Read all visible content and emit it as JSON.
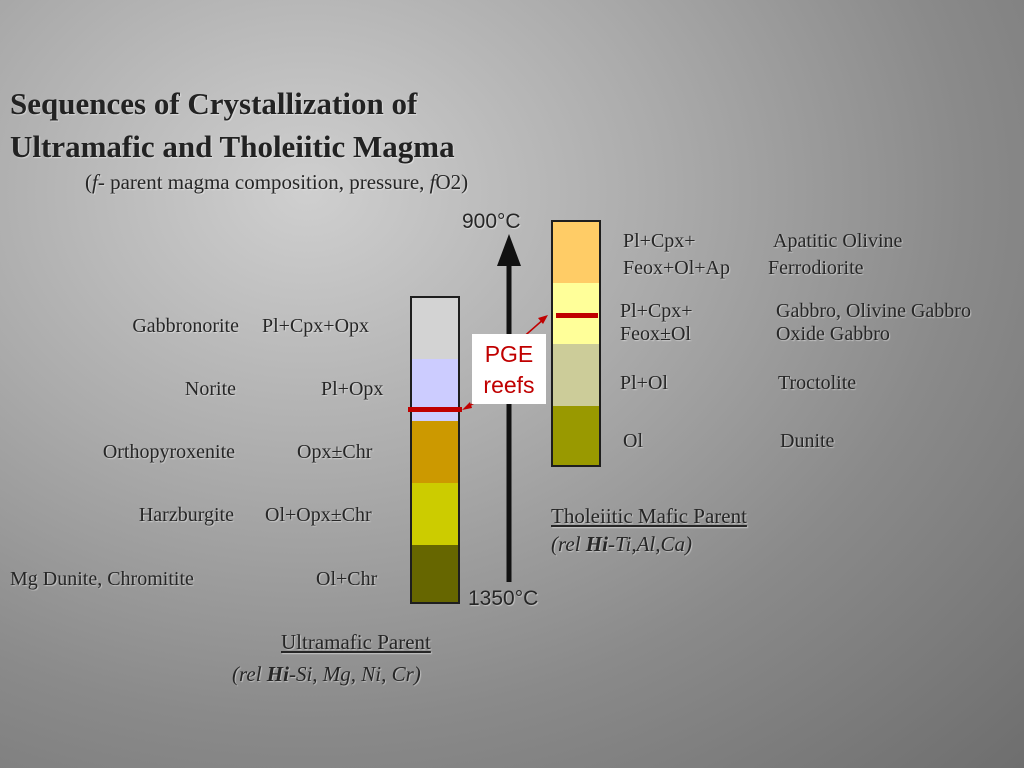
{
  "title_line1": "Sequences of Crystallization of",
  "title_line2": "Ultramafic and Tholeiitic Magma",
  "subtitle": {
    "open": "(",
    "f1": "f",
    "mid": "- parent magma composition, pressure, ",
    "f2": "f",
    "end": "O2)"
  },
  "temperature": {
    "top": "900°C",
    "bottom": "1350°C"
  },
  "pge_label": {
    "line1": "PGE",
    "line2": "reefs"
  },
  "ultramafic": {
    "rows": [
      {
        "rock": "Gabbronorite",
        "minerals": "Pl+Cpx+Opx",
        "color": "#d3d3d3"
      },
      {
        "rock": "Norite",
        "minerals": "Pl+Opx",
        "color": "#ccccff"
      },
      {
        "rock": "Orthopyroxenite",
        "minerals": "Opx±Chr",
        "color": "#cc9900"
      },
      {
        "rock": "Harzburgite",
        "minerals": "Ol+Opx±Chr",
        "color": "#cccc00"
      },
      {
        "rock": "Mg Dunite, Chromitite",
        "minerals": "Ol+Chr",
        "color": "#666600"
      }
    ],
    "caption": "Ultramafic Parent",
    "caption_sub": {
      "open": "(rel ",
      "hi": "Hi",
      "rest": "-Si, Mg, Ni, Cr)"
    }
  },
  "tholeiitic": {
    "rows": [
      {
        "minerals_line1": "Pl+Cpx+",
        "minerals_line2": "Feox+Ol+Ap",
        "rock_line1": "Apatitic Olivine",
        "rock_line2": "Ferrodiorite",
        "color": "#ffcc66"
      },
      {
        "minerals_line1": "Pl+Cpx+",
        "minerals_line2": "Feox±Ol",
        "rock_line1": "Gabbro, Olivine Gabbro",
        "rock_line2": "Oxide Gabbro",
        "color": "#ffff99"
      },
      {
        "minerals_line1": "Pl+Ol",
        "minerals_line2": "",
        "rock_line1": "Troctolite",
        "rock_line2": "",
        "color": "#cccc99"
      },
      {
        "minerals_line1": "Ol",
        "minerals_line2": "",
        "rock_line1": "Dunite",
        "rock_line2": "",
        "color": "#999900"
      }
    ],
    "caption": "Tholeiitic Mafic Parent",
    "caption_sub": {
      "open": "(rel ",
      "hi": "Hi",
      "rest": "-Ti,Al,Ca)"
    }
  },
  "colors": {
    "reef_line": "#c00000",
    "arrow": "#111111",
    "column_border": "#1e1e1e"
  }
}
